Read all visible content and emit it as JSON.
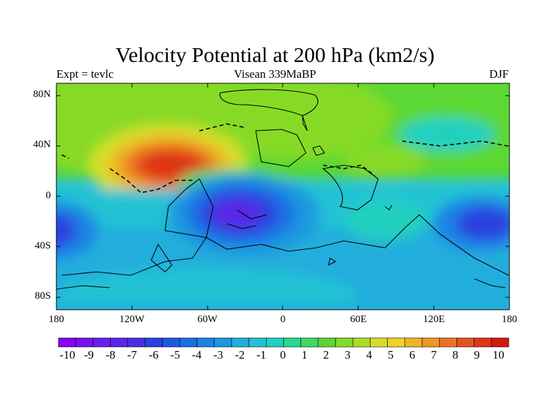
{
  "title": "Velocity Potential at 200 hPa (km2/s)",
  "subtitle_left": "Expt = tevlc",
  "subtitle_center": "Visean 339MaBP",
  "subtitle_right": "DJF",
  "lat_ticks": [
    {
      "label": "80N",
      "value": 80
    },
    {
      "label": "40N",
      "value": 40
    },
    {
      "label": "0",
      "value": 0
    },
    {
      "label": "40S",
      "value": -40
    },
    {
      "label": "80S",
      "value": -80
    }
  ],
  "lon_ticks": [
    {
      "label": "180",
      "value": -180
    },
    {
      "label": "120W",
      "value": -120
    },
    {
      "label": "60W",
      "value": -60
    },
    {
      "label": "0",
      "value": 0
    },
    {
      "label": "60E",
      "value": 60
    },
    {
      "label": "120E",
      "value": 120
    },
    {
      "label": "180",
      "value": 180
    }
  ],
  "colorbar": {
    "labels": [
      "-10",
      "-9",
      "-8",
      "-7",
      "-6",
      "-5",
      "-4",
      "-3",
      "-2",
      "-1",
      "0",
      "1",
      "2",
      "3",
      "4",
      "5",
      "6",
      "7",
      "8",
      "9",
      "10"
    ],
    "colors": [
      "#8A00F0",
      "#7A10EE",
      "#6A1DEC",
      "#5A25E8",
      "#4A30E4",
      "#2A40E0",
      "#1E58E4",
      "#1A6EE4",
      "#1A84E4",
      "#1C98E0",
      "#20AEDC",
      "#22C2D4",
      "#20D0C0",
      "#26D898",
      "#40D860",
      "#5CD830",
      "#86DA28",
      "#ACDC28",
      "#D6DE2A",
      "#F0D22A",
      "#F0B428",
      "#EE9626",
      "#EA7424",
      "#E45420",
      "#DE3418",
      "#D41810"
    ]
  },
  "chart_data": {
    "type": "heatmap",
    "title": "Velocity Potential at 200 hPa (km2/s)",
    "variable": "Velocity Potential",
    "units": "km2/s",
    "level": "200 hPa",
    "season": "DJF",
    "experiment": "tevlc",
    "period": "Visean 339MaBP",
    "lon_range": [
      -180,
      180
    ],
    "lat_range": [
      -90,
      90
    ],
    "value_range": [
      -10,
      10
    ],
    "contour_interval": 1,
    "features": [
      {
        "name": "maximum",
        "lon": -87,
        "lat": 20,
        "value": 10
      },
      {
        "name": "minimum",
        "lon": -35,
        "lat": -12,
        "value": -9
      },
      {
        "name": "minimum",
        "lon": 160,
        "lat": -28,
        "value": -7
      },
      {
        "name": "minimum",
        "lon": -178,
        "lat": -35,
        "value": -6
      }
    ]
  }
}
